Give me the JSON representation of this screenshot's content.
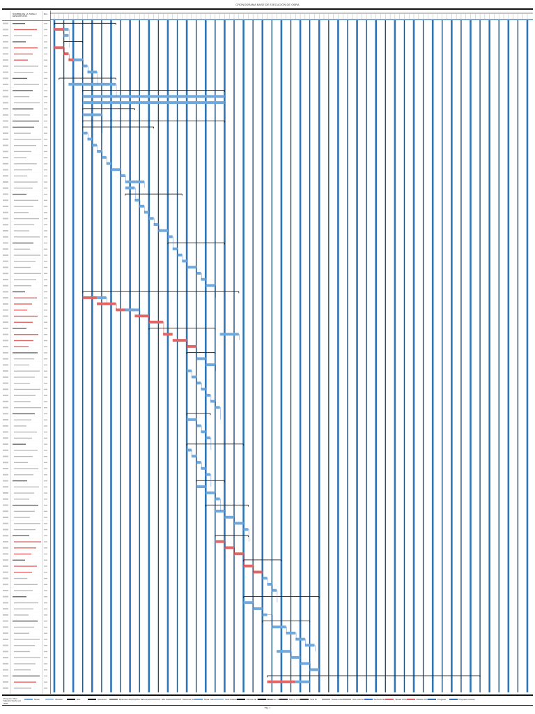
{
  "title": "CRONOGRAMA BASE DE EJECUCIÓN DE OBRA",
  "left_panel": {
    "col_name_header": "NOMBRE DE LA TAREA / DESCRIPCIÓN",
    "col_dur_header": "Dur."
  },
  "colors": {
    "task_bar": "#6fa8dc",
    "critical_bar": "#e06666",
    "summary_bar": "#222222",
    "link_line": "#3c78d8",
    "critical_link": "#cc0000",
    "grid_major": "#2e75b6",
    "grid_minor": "#1f4e79"
  },
  "footer": {
    "note": "Proyecto: Plan Maestro Fecha: jul 2021",
    "legend": [
      {
        "label": "Tarea",
        "color": "#6fa8dc"
      },
      {
        "label": "División",
        "color": "#9fc5e8"
      },
      {
        "label": "Hito",
        "color": "#222222"
      },
      {
        "label": "Resumen",
        "color": "#222222"
      },
      {
        "label": "Resumen del proyecto",
        "color": "#888888"
      },
      {
        "label": "Tarea inactiva",
        "color": "#bbbbbb"
      },
      {
        "label": "Hito inactivo",
        "color": "#bbbbbb"
      },
      {
        "label": "Resumen inactivo",
        "color": "#bbbbbb"
      },
      {
        "label": "Tarea manual",
        "color": "#6fa8dc"
      },
      {
        "label": "Solo duración",
        "color": "#9fc5e8"
      },
      {
        "label": "Informe de resumen manual",
        "color": "#222222"
      },
      {
        "label": "Resumen manual",
        "color": "#222222"
      },
      {
        "label": "Solo el comienzo",
        "color": "#444444"
      },
      {
        "label": "Solo fin",
        "color": "#444444"
      },
      {
        "label": "Tareas externas",
        "color": "#aaaaaa"
      },
      {
        "label": "Hito externo",
        "color": "#aaaaaa"
      },
      {
        "label": "Fecha límite",
        "color": "#3c78d8"
      },
      {
        "label": "Tareas críticas",
        "color": "#e06666"
      },
      {
        "label": "División crítica",
        "color": "#e06666"
      },
      {
        "label": "Progreso",
        "color": "#2e75b6"
      },
      {
        "label": "Progreso manual",
        "color": "#2e75b6"
      }
    ]
  },
  "page_number": "Pág. 1",
  "chart_data": {
    "type": "gantt",
    "x_unit": "week",
    "x_range": [
      0,
      100
    ],
    "row_count": 110,
    "vertical_grid_every_weeks": 2,
    "tasks": [
      {
        "row": 0,
        "kind": "summary",
        "start": 0,
        "end": 13
      },
      {
        "row": 1,
        "kind": "critical",
        "start": 0,
        "end": 2
      },
      {
        "row": 1,
        "kind": "task",
        "start": 2,
        "end": 3
      },
      {
        "row": 2,
        "kind": "task",
        "start": 2,
        "end": 3
      },
      {
        "row": 3,
        "kind": "summary",
        "start": 2,
        "end": 6
      },
      {
        "row": 4,
        "kind": "critical",
        "start": 0,
        "end": 2
      },
      {
        "row": 5,
        "kind": "critical",
        "start": 2,
        "end": 3
      },
      {
        "row": 6,
        "kind": "critical",
        "start": 3,
        "end": 6
      },
      {
        "row": 6,
        "kind": "task",
        "start": 4,
        "end": 6
      },
      {
        "row": 7,
        "kind": "task",
        "start": 6,
        "end": 7
      },
      {
        "row": 8,
        "kind": "task",
        "start": 7,
        "end": 9
      },
      {
        "row": 9,
        "kind": "summary",
        "start": 1,
        "end": 13
      },
      {
        "row": 10,
        "kind": "task",
        "start": 3,
        "end": 13
      },
      {
        "row": 11,
        "kind": "summary",
        "start": 6,
        "end": 36
      },
      {
        "row": 12,
        "kind": "task",
        "start": 6,
        "end": 36
      },
      {
        "row": 13,
        "kind": "task",
        "start": 6,
        "end": 36
      },
      {
        "row": 14,
        "kind": "summary",
        "start": 6,
        "end": 17
      },
      {
        "row": 15,
        "kind": "task",
        "start": 6,
        "end": 10
      },
      {
        "row": 16,
        "kind": "summary",
        "start": 6,
        "end": 36
      },
      {
        "row": 17,
        "kind": "summary",
        "start": 6,
        "end": 21
      },
      {
        "row": 18,
        "kind": "task",
        "start": 6,
        "end": 7
      },
      {
        "row": 19,
        "kind": "task",
        "start": 7,
        "end": 8
      },
      {
        "row": 20,
        "kind": "task",
        "start": 8,
        "end": 9
      },
      {
        "row": 21,
        "kind": "task",
        "start": 9,
        "end": 10
      },
      {
        "row": 22,
        "kind": "task",
        "start": 10,
        "end": 11
      },
      {
        "row": 23,
        "kind": "task",
        "start": 11,
        "end": 12
      },
      {
        "row": 24,
        "kind": "task",
        "start": 12,
        "end": 14
      },
      {
        "row": 25,
        "kind": "task",
        "start": 14,
        "end": 15
      },
      {
        "row": 26,
        "kind": "task",
        "start": 15,
        "end": 19
      },
      {
        "row": 27,
        "kind": "task",
        "start": 15,
        "end": 17
      },
      {
        "row": 28,
        "kind": "summary",
        "start": 15,
        "end": 27
      },
      {
        "row": 29,
        "kind": "task",
        "start": 17,
        "end": 18
      },
      {
        "row": 30,
        "kind": "task",
        "start": 18,
        "end": 19
      },
      {
        "row": 31,
        "kind": "task",
        "start": 19,
        "end": 20
      },
      {
        "row": 32,
        "kind": "task",
        "start": 20,
        "end": 21
      },
      {
        "row": 33,
        "kind": "task",
        "start": 21,
        "end": 22
      },
      {
        "row": 34,
        "kind": "task",
        "start": 22,
        "end": 24
      },
      {
        "row": 35,
        "kind": "task",
        "start": 24,
        "end": 25
      },
      {
        "row": 36,
        "kind": "summary",
        "start": 24,
        "end": 36
      },
      {
        "row": 37,
        "kind": "task",
        "start": 25,
        "end": 26
      },
      {
        "row": 38,
        "kind": "task",
        "start": 26,
        "end": 27
      },
      {
        "row": 39,
        "kind": "task",
        "start": 27,
        "end": 28
      },
      {
        "row": 40,
        "kind": "task",
        "start": 28,
        "end": 30
      },
      {
        "row": 41,
        "kind": "task",
        "start": 30,
        "end": 31
      },
      {
        "row": 42,
        "kind": "task",
        "start": 31,
        "end": 32
      },
      {
        "row": 43,
        "kind": "task",
        "start": 32,
        "end": 34
      },
      {
        "row": 44,
        "kind": "summary",
        "start": 6,
        "end": 39
      },
      {
        "row": 45,
        "kind": "critical",
        "start": 6,
        "end": 9
      },
      {
        "row": 45,
        "kind": "task",
        "start": 9,
        "end": 11
      },
      {
        "row": 46,
        "kind": "critical",
        "start": 9,
        "end": 13
      },
      {
        "row": 47,
        "kind": "critical",
        "start": 13,
        "end": 17
      },
      {
        "row": 47,
        "kind": "task",
        "start": 15,
        "end": 18
      },
      {
        "row": 48,
        "kind": "critical",
        "start": 17,
        "end": 20
      },
      {
        "row": 49,
        "kind": "critical",
        "start": 20,
        "end": 23
      },
      {
        "row": 50,
        "kind": "summary",
        "start": 20,
        "end": 34
      },
      {
        "row": 51,
        "kind": "critical",
        "start": 23,
        "end": 25
      },
      {
        "row": 51,
        "kind": "task",
        "start": 35,
        "end": 39
      },
      {
        "row": 52,
        "kind": "critical",
        "start": 25,
        "end": 28
      },
      {
        "row": 53,
        "kind": "critical",
        "start": 28,
        "end": 30
      },
      {
        "row": 54,
        "kind": "summary",
        "start": 28,
        "end": 34
      },
      {
        "row": 55,
        "kind": "task",
        "start": 30,
        "end": 32
      },
      {
        "row": 56,
        "kind": "task",
        "start": 32,
        "end": 34
      },
      {
        "row": 57,
        "kind": "task",
        "start": 28,
        "end": 29
      },
      {
        "row": 58,
        "kind": "task",
        "start": 29,
        "end": 30
      },
      {
        "row": 59,
        "kind": "task",
        "start": 30,
        "end": 31
      },
      {
        "row": 60,
        "kind": "task",
        "start": 31,
        "end": 32
      },
      {
        "row": 61,
        "kind": "task",
        "start": 32,
        "end": 33
      },
      {
        "row": 62,
        "kind": "task",
        "start": 33,
        "end": 34
      },
      {
        "row": 63,
        "kind": "task",
        "start": 34,
        "end": 35
      },
      {
        "row": 64,
        "kind": "summary",
        "start": 28,
        "end": 33
      },
      {
        "row": 65,
        "kind": "task",
        "start": 28,
        "end": 30
      },
      {
        "row": 66,
        "kind": "task",
        "start": 30,
        "end": 31
      },
      {
        "row": 67,
        "kind": "task",
        "start": 31,
        "end": 32
      },
      {
        "row": 68,
        "kind": "task",
        "start": 32,
        "end": 33
      },
      {
        "row": 69,
        "kind": "summary",
        "start": 28,
        "end": 40
      },
      {
        "row": 70,
        "kind": "task",
        "start": 28,
        "end": 29
      },
      {
        "row": 71,
        "kind": "task",
        "start": 29,
        "end": 30
      },
      {
        "row": 72,
        "kind": "task",
        "start": 30,
        "end": 31
      },
      {
        "row": 73,
        "kind": "task",
        "start": 31,
        "end": 32
      },
      {
        "row": 74,
        "kind": "task",
        "start": 32,
        "end": 33
      },
      {
        "row": 75,
        "kind": "summary",
        "start": 30,
        "end": 36
      },
      {
        "row": 76,
        "kind": "task",
        "start": 30,
        "end": 32
      },
      {
        "row": 77,
        "kind": "task",
        "start": 32,
        "end": 34
      },
      {
        "row": 78,
        "kind": "task",
        "start": 34,
        "end": 35
      },
      {
        "row": 79,
        "kind": "summary",
        "start": 32,
        "end": 41
      },
      {
        "row": 80,
        "kind": "task",
        "start": 34,
        "end": 36
      },
      {
        "row": 81,
        "kind": "task",
        "start": 36,
        "end": 38
      },
      {
        "row": 82,
        "kind": "task",
        "start": 38,
        "end": 40
      },
      {
        "row": 83,
        "kind": "task",
        "start": 40,
        "end": 41
      },
      {
        "row": 84,
        "kind": "summary",
        "start": 34,
        "end": 41
      },
      {
        "row": 85,
        "kind": "critical",
        "start": 34,
        "end": 36
      },
      {
        "row": 86,
        "kind": "critical",
        "start": 36,
        "end": 38
      },
      {
        "row": 87,
        "kind": "critical",
        "start": 38,
        "end": 40
      },
      {
        "row": 88,
        "kind": "summary",
        "start": 40,
        "end": 48
      },
      {
        "row": 89,
        "kind": "critical",
        "start": 40,
        "end": 42
      },
      {
        "row": 90,
        "kind": "critical",
        "start": 42,
        "end": 44
      },
      {
        "row": 91,
        "kind": "task",
        "start": 44,
        "end": 45
      },
      {
        "row": 92,
        "kind": "task",
        "start": 45,
        "end": 46
      },
      {
        "row": 93,
        "kind": "task",
        "start": 46,
        "end": 47
      },
      {
        "row": 94,
        "kind": "summary",
        "start": 40,
        "end": 56
      },
      {
        "row": 95,
        "kind": "task",
        "start": 40,
        "end": 42
      },
      {
        "row": 96,
        "kind": "task",
        "start": 42,
        "end": 44
      },
      {
        "row": 97,
        "kind": "task",
        "start": 44,
        "end": 45
      },
      {
        "row": 98,
        "kind": "summary",
        "start": 44,
        "end": 54
      },
      {
        "row": 99,
        "kind": "task",
        "start": 46,
        "end": 49
      },
      {
        "row": 100,
        "kind": "task",
        "start": 49,
        "end": 51
      },
      {
        "row": 101,
        "kind": "task",
        "start": 51,
        "end": 53
      },
      {
        "row": 102,
        "kind": "task",
        "start": 53,
        "end": 55
      },
      {
        "row": 103,
        "kind": "task",
        "start": 47,
        "end": 50
      },
      {
        "row": 104,
        "kind": "task",
        "start": 50,
        "end": 52
      },
      {
        "row": 105,
        "kind": "task",
        "start": 52,
        "end": 54
      },
      {
        "row": 106,
        "kind": "task",
        "start": 54,
        "end": 56
      },
      {
        "row": 107,
        "kind": "summary",
        "start": 45,
        "end": 90
      },
      {
        "row": 108,
        "kind": "critical",
        "start": 45,
        "end": 51
      },
      {
        "row": 108,
        "kind": "task",
        "start": 51,
        "end": 54
      }
    ]
  }
}
